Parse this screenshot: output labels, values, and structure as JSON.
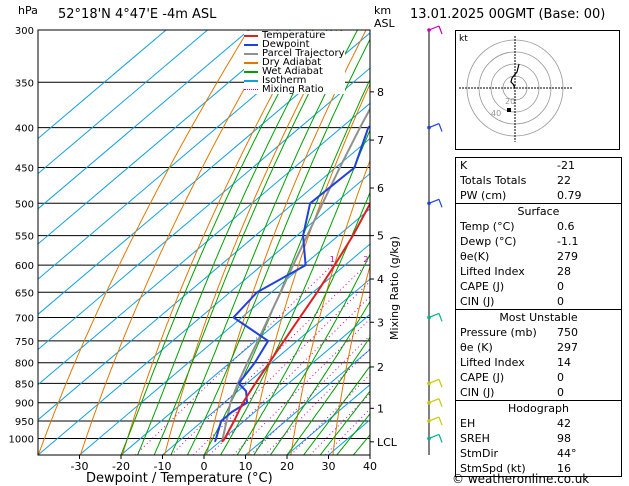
{
  "header": {
    "hpa_label": "hPa",
    "location": "52°18'N  4°47'E  -4m  ASL",
    "km_label": "km",
    "asl_label": "ASL",
    "datetime": "13.01.2025  00GMT  (Base: 00)",
    "xlabel": "Dewpoint / Temperature (°C)",
    "mixing_label": "Mixing Ratio (g/kg)",
    "copyright": "© weatheronline.co.uk"
  },
  "legend": [
    {
      "label": "Temperature",
      "color": "#e02020",
      "style": "solid"
    },
    {
      "label": "Dewpoint",
      "color": "#2040e0",
      "style": "solid"
    },
    {
      "label": "Parcel Trajectory",
      "color": "#909090",
      "style": "solid"
    },
    {
      "label": "Dry Adiabat",
      "color": "#e07800",
      "style": "solid"
    },
    {
      "label": "Wet Adiabat",
      "color": "#00a000",
      "style": "solid"
    },
    {
      "label": "Isotherm",
      "color": "#10a0e0",
      "style": "solid"
    },
    {
      "label": "Mixing Ratio",
      "color": "#c000c0",
      "style": "dotted"
    }
  ],
  "indices": {
    "main": [
      {
        "label": "K",
        "value": "-21"
      },
      {
        "label": "Totals Totals",
        "value": "22"
      },
      {
        "label": "PW (cm)",
        "value": "0.79"
      }
    ],
    "surface_title": "Surface",
    "surface": [
      {
        "label": "Temp (°C)",
        "value": "0.6"
      },
      {
        "label": "Dewp (°C)",
        "value": "-1.1"
      },
      {
        "label": "θe(K)",
        "value": "279"
      },
      {
        "label": "Lifted Index",
        "value": "28"
      },
      {
        "label": "CAPE (J)",
        "value": "0"
      },
      {
        "label": "CIN (J)",
        "value": "0"
      }
    ],
    "unstable_title": "Most Unstable",
    "unstable": [
      {
        "label": "Pressure (mb)",
        "value": "750"
      },
      {
        "label": "θe (K)",
        "value": "297"
      },
      {
        "label": "Lifted Index",
        "value": "14"
      },
      {
        "label": "CAPE (J)",
        "value": "0"
      },
      {
        "label": "CIN (J)",
        "value": "0"
      }
    ],
    "hodo_title": "Hodograph",
    "hodo": [
      {
        "label": "EH",
        "value": "42"
      },
      {
        "label": "SREH",
        "value": "98"
      },
      {
        "label": "StmDir",
        "value": "44°"
      },
      {
        "label": "StmSpd (kt)",
        "value": "16"
      }
    ]
  },
  "hodograph": {
    "label": "kt",
    "ring_labels": [
      "20",
      "40"
    ]
  },
  "chart_data": {
    "type": "skew-t",
    "title": "52°18'N 4°47'E -4m ASL",
    "xlabel": "Dewpoint / Temperature (°C)",
    "ylabel": "hPa",
    "xlim": [
      -40,
      40
    ],
    "ylim": [
      1050,
      300
    ],
    "pressure_levels": [
      300,
      350,
      400,
      450,
      500,
      550,
      600,
      650,
      700,
      750,
      800,
      850,
      900,
      950,
      1000
    ],
    "x_ticks": [
      -30,
      -20,
      -10,
      0,
      10,
      20,
      30,
      40
    ],
    "km_ticks": [
      {
        "label": "8",
        "p": 360
      },
      {
        "label": "7",
        "p": 415
      },
      {
        "label": "6",
        "p": 478
      },
      {
        "label": "5",
        "p": 550
      },
      {
        "label": "4",
        "p": 625
      },
      {
        "label": "3",
        "p": 710
      },
      {
        "label": "2",
        "p": 810
      },
      {
        "label": "1",
        "p": 915
      },
      {
        "label": "LCL",
        "p": 1010
      }
    ],
    "mixing_ratio_labels": [
      "1",
      "2",
      "3",
      "4",
      "6",
      "8",
      "10",
      "15",
      "20",
      "25"
    ],
    "mixing_ratio_values": [
      1,
      2,
      3,
      4,
      6,
      8,
      10,
      15,
      20,
      25
    ],
    "temperature": [
      {
        "p": 1010,
        "t": 0.6
      },
      {
        "p": 1000,
        "t": 0.3
      },
      {
        "p": 950,
        "t": -2.4
      },
      {
        "p": 900,
        "t": -5.5
      },
      {
        "p": 850,
        "t": -8.0
      },
      {
        "p": 800,
        "t": -10.5
      },
      {
        "p": 750,
        "t": -13.2
      },
      {
        "p": 700,
        "t": -16.0
      },
      {
        "p": 650,
        "t": -19.0
      },
      {
        "p": 600,
        "t": -22.5
      },
      {
        "p": 550,
        "t": -26.5
      },
      {
        "p": 500,
        "t": -31.5
      },
      {
        "p": 450,
        "t": -37.0
      },
      {
        "p": 400,
        "t": -43.0
      },
      {
        "p": 350,
        "t": -49.5
      },
      {
        "p": 300,
        "t": -56.5
      }
    ],
    "dewpoint": [
      {
        "p": 1010,
        "t": -1.1
      },
      {
        "p": 1000,
        "t": -1.8
      },
      {
        "p": 950,
        "t": -5.5
      },
      {
        "p": 925,
        "t": -5.5
      },
      {
        "p": 900,
        "t": -4.5
      },
      {
        "p": 870,
        "t": -8.0
      },
      {
        "p": 850,
        "t": -12.0
      },
      {
        "p": 800,
        "t": -14.0
      },
      {
        "p": 750,
        "t": -17.0
      },
      {
        "p": 700,
        "t": -32.0
      },
      {
        "p": 650,
        "t": -33.5
      },
      {
        "p": 600,
        "t": -29.5
      },
      {
        "p": 550,
        "t": -38.5
      },
      {
        "p": 500,
        "t": -46.0
      },
      {
        "p": 450,
        "t": -45.5
      },
      {
        "p": 400,
        "t": -53.5
      },
      {
        "p": 350,
        "t": -52.0
      },
      {
        "p": 300,
        "t": -58.5
      }
    ],
    "parcel": [
      {
        "p": 1010,
        "t": 0.6
      },
      {
        "p": 950,
        "t": -4.2
      },
      {
        "p": 900,
        "t": -8.5
      },
      {
        "p": 850,
        "t": -12.2
      },
      {
        "p": 800,
        "t": -15.8
      },
      {
        "p": 750,
        "t": -19.5
      },
      {
        "p": 700,
        "t": -23.5
      },
      {
        "p": 650,
        "t": -27.8
      },
      {
        "p": 600,
        "t": -32.5
      },
      {
        "p": 550,
        "t": -37.5
      },
      {
        "p": 500,
        "t": -43.0
      },
      {
        "p": 450,
        "t": -49.0
      },
      {
        "p": 400,
        "t": -55.5
      },
      {
        "p": 350,
        "t": -62.5
      },
      {
        "p": 300,
        "t": -70.0
      }
    ],
    "wind_barbs": [
      {
        "p": 300,
        "color": "#c000c0"
      },
      {
        "p": 400,
        "color": "#2040e0"
      },
      {
        "p": 500,
        "color": "#2040e0"
      },
      {
        "p": 700,
        "color": "#00b090"
      },
      {
        "p": 850,
        "color": "#c8c800"
      },
      {
        "p": 900,
        "color": "#c8c800"
      },
      {
        "p": 950,
        "color": "#c8c800"
      },
      {
        "p": 1000,
        "color": "#00b090"
      }
    ]
  }
}
